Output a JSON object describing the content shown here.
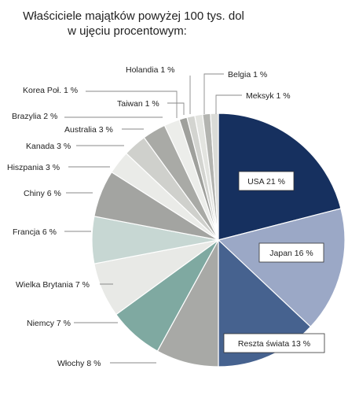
{
  "chart_data": {
    "type": "pie",
    "title_lines": [
      "Właściciele majątków powyżej 100 tys. dol",
      "w ujęciu procentowym:"
    ],
    "slices": [
      {
        "label": "USA 21 %",
        "name": "USA",
        "value": 21,
        "color": "#16305f"
      },
      {
        "label": "Japan 16 %",
        "name": "Japan",
        "value": 16,
        "color": "#9ba8c6"
      },
      {
        "label": "Reszta świata 13 %",
        "name": "Reszta świata",
        "value": 13,
        "color": "#46628f"
      },
      {
        "label": "Włochy 8 %",
        "name": "Włochy",
        "value": 8,
        "color": "#a8a9a6"
      },
      {
        "label": "Niemcy 7 %",
        "name": "Niemcy",
        "value": 7,
        "color": "#7fa9a1"
      },
      {
        "label": "Wielka Brytania 7 %",
        "name": "Wielka Brytania",
        "value": 7,
        "color": "#e8e9e6"
      },
      {
        "label": "Francja 6 %",
        "name": "Francja",
        "value": 6,
        "color": "#c7d7d3"
      },
      {
        "label": "Chiny 6 %",
        "name": "Chiny",
        "value": 6,
        "color": "#a3a4a1"
      },
      {
        "label": "Hiszpania 3 %",
        "name": "Hiszpania",
        "value": 3,
        "color": "#eaebe8"
      },
      {
        "label": "Kanada 3 %",
        "name": "Kanada",
        "value": 3,
        "color": "#cfd0cc"
      },
      {
        "label": "Australia 3 %",
        "name": "Australia",
        "value": 3,
        "color": "#a9aaa6"
      },
      {
        "label": "Brazylia 2 %",
        "name": "Brazylia",
        "value": 2,
        "color": "#ecedea"
      },
      {
        "label": "Korea Poł. 1 %",
        "name": "Korea Poł.",
        "value": 1,
        "color": "#9fa09c"
      },
      {
        "label": "Taiwan 1 %",
        "name": "Taiwan",
        "value": 1,
        "color": "#d3d4d0"
      },
      {
        "label": "Holandia 1 %",
        "name": "Holandia",
        "value": 1,
        "color": "#e3e4e0"
      },
      {
        "label": "Belgia 1 %",
        "name": "Belgia",
        "value": 1,
        "color": "#b3b4b0"
      },
      {
        "label": "Meksyk 1 %",
        "name": "Meksyk",
        "value": 1,
        "color": "#dadbd7"
      }
    ]
  }
}
